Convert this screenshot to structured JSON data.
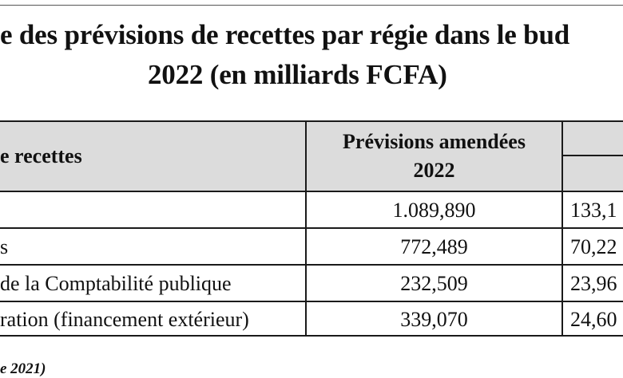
{
  "title": {
    "line1": "e des prévisions de recettes par régie dans le bud",
    "line2": "2022 (en milliards FCFA)"
  },
  "table": {
    "headers": {
      "col1": "e recettes",
      "col2_line1": "Prévisions amendées",
      "col2_line2": "2022"
    },
    "rows": [
      {
        "label": "",
        "value": "1.089,890",
        "partial": "133,1"
      },
      {
        "label": "s",
        "value": "772,489",
        "partial": "70,22"
      },
      {
        "label": " de la Comptabilité publique",
        "value": "232,509",
        "partial": "23,96"
      },
      {
        "label": "ration (financement extérieur)",
        "value": "339,070",
        "partial": "24,60"
      }
    ]
  },
  "note": "e 2021)"
}
